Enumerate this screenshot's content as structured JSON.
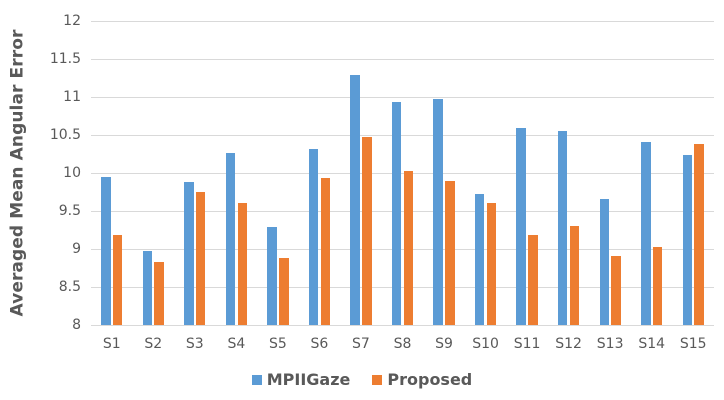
{
  "chart_data": {
    "type": "bar",
    "title": "",
    "xlabel": "",
    "ylabel": "Averaged Mean Angular Error",
    "ylim": [
      8,
      12
    ],
    "yticks": [
      "8",
      "8.5",
      "9",
      "9.5",
      "10",
      "10.5",
      "11",
      "11.5",
      "12"
    ],
    "grid": true,
    "legend_position": "bottom",
    "categories": [
      "S1",
      "S2",
      "S3",
      "S4",
      "S5",
      "S6",
      "S7",
      "S8",
      "S9",
      "S10",
      "S11",
      "S12",
      "S13",
      "S14",
      "S15"
    ],
    "series": [
      {
        "name": "MPIIGaze",
        "color": "#5B9BD5",
        "values": [
          9.95,
          8.97,
          9.88,
          10.26,
          9.29,
          10.32,
          11.29,
          10.93,
          10.98,
          9.73,
          10.59,
          10.55,
          9.66,
          10.41,
          10.24
        ]
      },
      {
        "name": "Proposed",
        "color": "#ED7D31",
        "values": [
          9.19,
          8.83,
          9.75,
          9.6,
          8.88,
          9.94,
          10.48,
          10.02,
          9.89,
          9.61,
          9.18,
          9.3,
          8.91,
          9.02,
          10.38
        ]
      }
    ]
  }
}
